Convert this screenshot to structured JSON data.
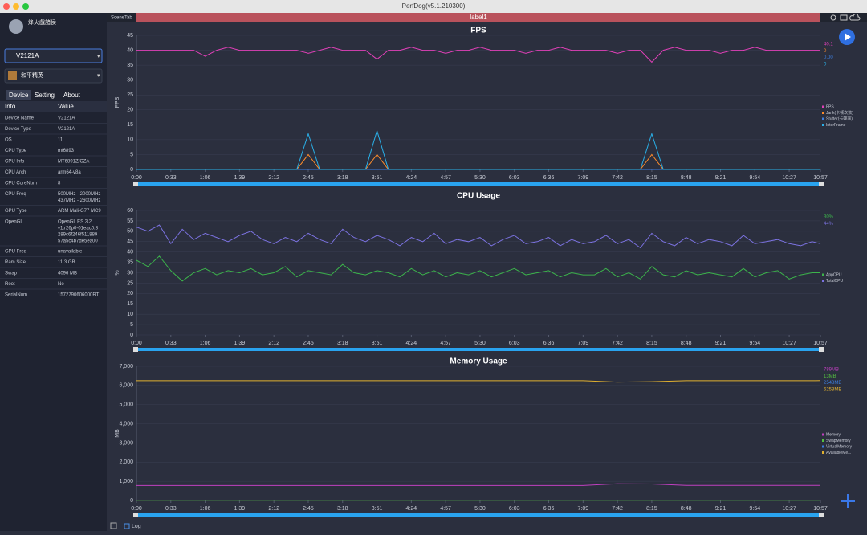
{
  "window": {
    "title": "PerfDog(v5.1.210300)"
  },
  "sidebar": {
    "user": "烽火戲諸侯",
    "device": "V2121A",
    "app": "和平精英",
    "tabs": [
      "Device",
      "Setting",
      "About"
    ],
    "header": [
      "Info",
      "Value"
    ],
    "rows": [
      [
        "Device Name",
        [
          "V2121A"
        ]
      ],
      [
        "Device Type",
        [
          "V2121A"
        ]
      ],
      [
        "OS",
        [
          "11"
        ]
      ],
      [
        "CPU Type",
        [
          "mt6893"
        ]
      ],
      [
        "CPU Info",
        [
          "MT6891Z/CZA"
        ]
      ],
      [
        "CPU Arch",
        [
          "arm64-v8a"
        ]
      ],
      [
        "CPU CoreNum",
        [
          "8"
        ]
      ],
      [
        "CPU Freq",
        [
          "500MHz - 2000MHz",
          "437MHz - 2600MHz"
        ]
      ],
      [
        "GPU Type",
        [
          "ARM Mali-G77 MC9"
        ]
      ],
      [
        "OpenGL",
        [
          "OpenGL ES 3.2",
          "v1.r26p0-01eac0.8",
          "289c6f246f511889",
          "57a5c4b7de5ea00"
        ]
      ],
      [
        "GPU Freq",
        [
          "unavailable"
        ]
      ],
      [
        "Ram Size",
        [
          "11.3 GB"
        ]
      ],
      [
        "Swap",
        [
          "4096 MB"
        ]
      ],
      [
        "Root",
        [
          "No"
        ]
      ],
      [
        "SerialNum",
        [
          "1572790606000RT"
        ]
      ]
    ]
  },
  "topbar": {
    "scene_tab": "SceneTab",
    "label": "label1"
  },
  "footer": {
    "log": "Log"
  },
  "chart_data": [
    {
      "type": "line",
      "title": "FPS",
      "y_label": "FPS",
      "xlim": [
        0,
        657
      ],
      "ylim": [
        0,
        45
      ],
      "yticks": [
        0,
        5,
        10,
        15,
        20,
        25,
        30,
        35,
        40,
        45
      ],
      "grid": true,
      "xticks": [
        {
          "value": 0,
          "label": "0:00"
        },
        {
          "value": 33,
          "label": "0:33"
        },
        {
          "value": 66,
          "label": "1:06"
        },
        {
          "value": 99,
          "label": "1:39"
        },
        {
          "value": 132,
          "label": "2:12"
        },
        {
          "value": 165,
          "label": "2:45"
        },
        {
          "value": 198,
          "label": "3:18"
        },
        {
          "value": 231,
          "label": "3:51"
        },
        {
          "value": 264,
          "label": "4:24"
        },
        {
          "value": 297,
          "label": "4:57"
        },
        {
          "value": 330,
          "label": "5:30"
        },
        {
          "value": 363,
          "label": "6:03"
        },
        {
          "value": 396,
          "label": "6:36"
        },
        {
          "value": 429,
          "label": "7:09"
        },
        {
          "value": 462,
          "label": "7:42"
        },
        {
          "value": 495,
          "label": "8:15"
        },
        {
          "value": 528,
          "label": "8:48"
        },
        {
          "value": 561,
          "label": "9:21"
        },
        {
          "value": 594,
          "label": "9:54"
        },
        {
          "value": 627,
          "label": "10:27"
        },
        {
          "value": 657,
          "label": "10:57"
        }
      ],
      "x": [
        0,
        11,
        22,
        33,
        44,
        55,
        66,
        77,
        88,
        99,
        110,
        121,
        132,
        143,
        154,
        165,
        176,
        187,
        198,
        209,
        220,
        231,
        242,
        253,
        264,
        275,
        286,
        297,
        308,
        319,
        330,
        341,
        352,
        363,
        374,
        385,
        396,
        407,
        418,
        429,
        440,
        451,
        462,
        473,
        484,
        495,
        506,
        517,
        528,
        539,
        550,
        561,
        572,
        583,
        594,
        605,
        616,
        627,
        638,
        649,
        657
      ],
      "series": [
        {
          "name": "FPS",
          "color": "#e040b8",
          "current": "40.1",
          "values": [
            40,
            40,
            40,
            40,
            40,
            40,
            38,
            40,
            41,
            40,
            40,
            40,
            40,
            40,
            40,
            39,
            40,
            41,
            40,
            40,
            40,
            37,
            40,
            40,
            41,
            40,
            40,
            39,
            40,
            40,
            41,
            40,
            40,
            40,
            39,
            40,
            40,
            41,
            40,
            40,
            40,
            40,
            39,
            40,
            40,
            36,
            40,
            41,
            40,
            40,
            40,
            39,
            40,
            40,
            41,
            40,
            40,
            40,
            40,
            40,
            40
          ]
        },
        {
          "name": "Jank(卡顿次数)",
          "color": "#ff8c2a",
          "current": "0",
          "values": [
            0,
            0,
            0,
            0,
            0,
            0,
            0,
            0,
            0,
            0,
            0,
            0,
            0,
            0,
            0,
            5,
            0,
            0,
            0,
            0,
            0,
            5,
            0,
            0,
            0,
            0,
            0,
            0,
            0,
            0,
            0,
            0,
            0,
            0,
            0,
            0,
            0,
            0,
            0,
            0,
            0,
            0,
            0,
            0,
            0,
            5,
            0,
            0,
            0,
            0,
            0,
            0,
            0,
            0,
            0,
            0,
            0,
            0,
            0,
            0,
            0
          ]
        },
        {
          "name": "Stutter(卡顿率)",
          "color": "#3d7fe0",
          "current": "0.00",
          "values": [
            0,
            0,
            0,
            0,
            0,
            0,
            0,
            0,
            0,
            0,
            0,
            0,
            0,
            0,
            0,
            0,
            0,
            0,
            0,
            0,
            0,
            0,
            0,
            0,
            0,
            0,
            0,
            0,
            0,
            0,
            0,
            0,
            0,
            0,
            0,
            0,
            0,
            0,
            0,
            0,
            0,
            0,
            0,
            0,
            0,
            0,
            0,
            0,
            0,
            0,
            0,
            0,
            0,
            0,
            0,
            0,
            0,
            0,
            0,
            0,
            0
          ]
        },
        {
          "name": "InterFrame",
          "color": "#2ab0e8",
          "current": "0",
          "values": [
            0,
            0,
            0,
            0,
            0,
            0,
            0,
            0,
            0,
            0,
            0,
            0,
            0,
            0,
            0,
            12,
            0,
            0,
            0,
            0,
            0,
            13,
            0,
            0,
            0,
            0,
            0,
            0,
            0,
            0,
            0,
            0,
            0,
            0,
            0,
            0,
            0,
            0,
            0,
            0,
            0,
            0,
            0,
            0,
            0,
            12,
            0,
            0,
            0,
            0,
            0,
            0,
            0,
            0,
            0,
            0,
            0,
            0,
            0,
            0,
            0
          ]
        }
      ]
    },
    {
      "type": "line",
      "title": "CPU Usage",
      "y_label": "%",
      "xlim": [
        0,
        657
      ],
      "ylim": [
        0,
        60
      ],
      "yticks": [
        0,
        5,
        10,
        15,
        20,
        25,
        30,
        35,
        40,
        45,
        50,
        55,
        60
      ],
      "grid": true,
      "xticks": [
        {
          "value": 0,
          "label": "0:00"
        },
        {
          "value": 33,
          "label": "0:33"
        },
        {
          "value": 66,
          "label": "1:06"
        },
        {
          "value": 99,
          "label": "1:39"
        },
        {
          "value": 132,
          "label": "2:12"
        },
        {
          "value": 165,
          "label": "2:45"
        },
        {
          "value": 198,
          "label": "3:18"
        },
        {
          "value": 231,
          "label": "3:51"
        },
        {
          "value": 264,
          "label": "4:24"
        },
        {
          "value": 297,
          "label": "4:57"
        },
        {
          "value": 330,
          "label": "5:30"
        },
        {
          "value": 363,
          "label": "6:03"
        },
        {
          "value": 396,
          "label": "6:36"
        },
        {
          "value": 429,
          "label": "7:09"
        },
        {
          "value": 462,
          "label": "7:42"
        },
        {
          "value": 495,
          "label": "8:15"
        },
        {
          "value": 528,
          "label": "8:48"
        },
        {
          "value": 561,
          "label": "9:21"
        },
        {
          "value": 594,
          "label": "9:54"
        },
        {
          "value": 627,
          "label": "10:27"
        },
        {
          "value": 657,
          "label": "10:57"
        }
      ],
      "x": [
        0,
        11,
        22,
        33,
        44,
        55,
        66,
        77,
        88,
        99,
        110,
        121,
        132,
        143,
        154,
        165,
        176,
        187,
        198,
        209,
        220,
        231,
        242,
        253,
        264,
        275,
        286,
        297,
        308,
        319,
        330,
        341,
        352,
        363,
        374,
        385,
        396,
        407,
        418,
        429,
        440,
        451,
        462,
        473,
        484,
        495,
        506,
        517,
        528,
        539,
        550,
        561,
        572,
        583,
        594,
        605,
        616,
        627,
        638,
        649,
        657
      ],
      "series": [
        {
          "name": "AppCPU",
          "color": "#3cb44b",
          "current": "30%",
          "values": [
            36,
            33,
            38,
            31,
            26,
            30,
            32,
            29,
            31,
            30,
            32,
            29,
            30,
            33,
            28,
            31,
            30,
            29,
            34,
            30,
            29,
            31,
            30,
            28,
            32,
            29,
            31,
            28,
            30,
            29,
            31,
            28,
            30,
            32,
            29,
            30,
            31,
            28,
            30,
            29,
            29,
            32,
            28,
            30,
            27,
            33,
            29,
            28,
            31,
            29,
            30,
            29,
            28,
            32,
            28,
            30,
            31,
            27,
            29,
            30,
            30
          ]
        },
        {
          "name": "TotalCPU",
          "color": "#7b72e0",
          "current": "44%",
          "values": [
            52,
            50,
            53,
            44,
            51,
            46,
            49,
            47,
            45,
            48,
            50,
            46,
            44,
            47,
            45,
            49,
            46,
            44,
            51,
            47,
            45,
            48,
            46,
            43,
            47,
            45,
            49,
            44,
            46,
            45,
            47,
            43,
            46,
            48,
            44,
            45,
            47,
            43,
            46,
            44,
            45,
            48,
            44,
            46,
            42,
            49,
            45,
            43,
            47,
            44,
            46,
            45,
            43,
            48,
            44,
            45,
            46,
            44,
            43,
            45,
            44
          ]
        }
      ]
    },
    {
      "type": "line",
      "title": "Memory Usage",
      "y_label": "MB",
      "xlim": [
        0,
        657
      ],
      "ylim": [
        0,
        7000
      ],
      "grid": true,
      "yticks": [
        0,
        {
          "value": 1000,
          "label": "1,000"
        },
        {
          "value": 2000,
          "label": "2,000"
        },
        {
          "value": 3000,
          "label": "3,000"
        },
        {
          "value": 4000,
          "label": "4,000"
        },
        {
          "value": 5000,
          "label": "5,000"
        },
        {
          "value": 6000,
          "label": "6,000"
        },
        {
          "value": 7000,
          "label": "7,000"
        }
      ],
      "xticks": [
        {
          "value": 0,
          "label": "0:00"
        },
        {
          "value": 33,
          "label": "0:33"
        },
        {
          "value": 66,
          "label": "1:06"
        },
        {
          "value": 99,
          "label": "1:39"
        },
        {
          "value": 132,
          "label": "2:12"
        },
        {
          "value": 165,
          "label": "2:45"
        },
        {
          "value": 198,
          "label": "3:18"
        },
        {
          "value": 231,
          "label": "3:51"
        },
        {
          "value": 264,
          "label": "4:24"
        },
        {
          "value": 297,
          "label": "4:57"
        },
        {
          "value": 330,
          "label": "5:30"
        },
        {
          "value": 363,
          "label": "6:03"
        },
        {
          "value": 396,
          "label": "6:36"
        },
        {
          "value": 429,
          "label": "7:09"
        },
        {
          "value": 462,
          "label": "7:42"
        },
        {
          "value": 495,
          "label": "8:15"
        },
        {
          "value": 528,
          "label": "8:48"
        },
        {
          "value": 561,
          "label": "9:21"
        },
        {
          "value": 594,
          "label": "9:54"
        },
        {
          "value": 627,
          "label": "10:27"
        },
        {
          "value": 657,
          "label": "10:57"
        }
      ],
      "x": [
        0,
        33,
        66,
        99,
        132,
        165,
        198,
        231,
        264,
        297,
        330,
        363,
        396,
        429,
        462,
        495,
        528,
        561,
        594,
        627,
        657
      ],
      "series": [
        {
          "name": "Memory",
          "color": "#c040c0",
          "current": "789MB",
          "values": [
            780,
            780,
            780,
            780,
            780,
            780,
            780,
            780,
            780,
            780,
            780,
            780,
            780,
            780,
            870,
            860,
            790,
            790,
            790,
            790,
            789
          ]
        },
        {
          "name": "SwapMemory",
          "color": "#55c040",
          "current": "13MB",
          "values": [
            13,
            13,
            13,
            13,
            13,
            13,
            13,
            13,
            13,
            13,
            13,
            13,
            13,
            13,
            13,
            13,
            13,
            13,
            13,
            13,
            13
          ]
        },
        {
          "name": "VirtualMemory",
          "color": "#3d7fe0",
          "current": "2548MB",
          "values": [
            null,
            null,
            null,
            null,
            null,
            null,
            null,
            null,
            null,
            null,
            null,
            null,
            null,
            null,
            null,
            null,
            null,
            null,
            null,
            null,
            null
          ]
        },
        {
          "name": "AvailableMe...",
          "color": "#e0b030",
          "current": "6253MB",
          "values": [
            6250,
            6250,
            6250,
            6250,
            6250,
            6250,
            6250,
            6250,
            6250,
            6250,
            6250,
            6250,
            6250,
            6250,
            6180,
            6200,
            6250,
            6250,
            6250,
            6250,
            6253
          ]
        }
      ]
    }
  ]
}
